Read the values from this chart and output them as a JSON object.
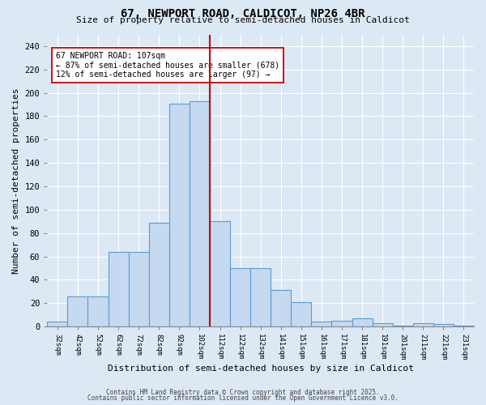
{
  "title_line1": "67, NEWPORT ROAD, CALDICOT, NP26 4BR",
  "title_line2": "Size of property relative to semi-detached houses in Caldicot",
  "xlabel": "Distribution of semi-detached houses by size in Caldicot",
  "ylabel": "Number of semi-detached properties",
  "bin_labels": [
    "32sqm",
    "42sqm",
    "52sqm",
    "62sqm",
    "72sqm",
    "82sqm",
    "92sqm",
    "102sqm",
    "112sqm",
    "122sqm",
    "132sqm",
    "141sqm",
    "151sqm",
    "161sqm",
    "171sqm",
    "181sqm",
    "191sqm",
    "201sqm",
    "211sqm",
    "221sqm",
    "231sqm"
  ],
  "counts": [
    4,
    26,
    26,
    64,
    64,
    89,
    191,
    193,
    90,
    50,
    50,
    31,
    21,
    4,
    5,
    7,
    3,
    1,
    3,
    2,
    1
  ],
  "bar_color": "#c5d9f0",
  "bar_edge_color": "#5b9bd5",
  "red_line_x": 8,
  "red_line_color": "#cc0000",
  "annotation_text": "67 NEWPORT ROAD: 107sqm\n← 87% of semi-detached houses are smaller (678)\n12% of semi-detached houses are larger (97) →",
  "annotation_box_color": "#ffffff",
  "annotation_box_edge": "#cc0000",
  "ylim": [
    0,
    250
  ],
  "yticks": [
    0,
    20,
    40,
    60,
    80,
    100,
    120,
    140,
    160,
    180,
    200,
    220,
    240
  ],
  "bg_color": "#dde8f5",
  "grid_color": "#ffffff",
  "footer_line1": "Contains HM Land Registry data © Crown copyright and database right 2025.",
  "footer_line2": "Contains public sector information licensed under the Open Government Licence v3.0."
}
